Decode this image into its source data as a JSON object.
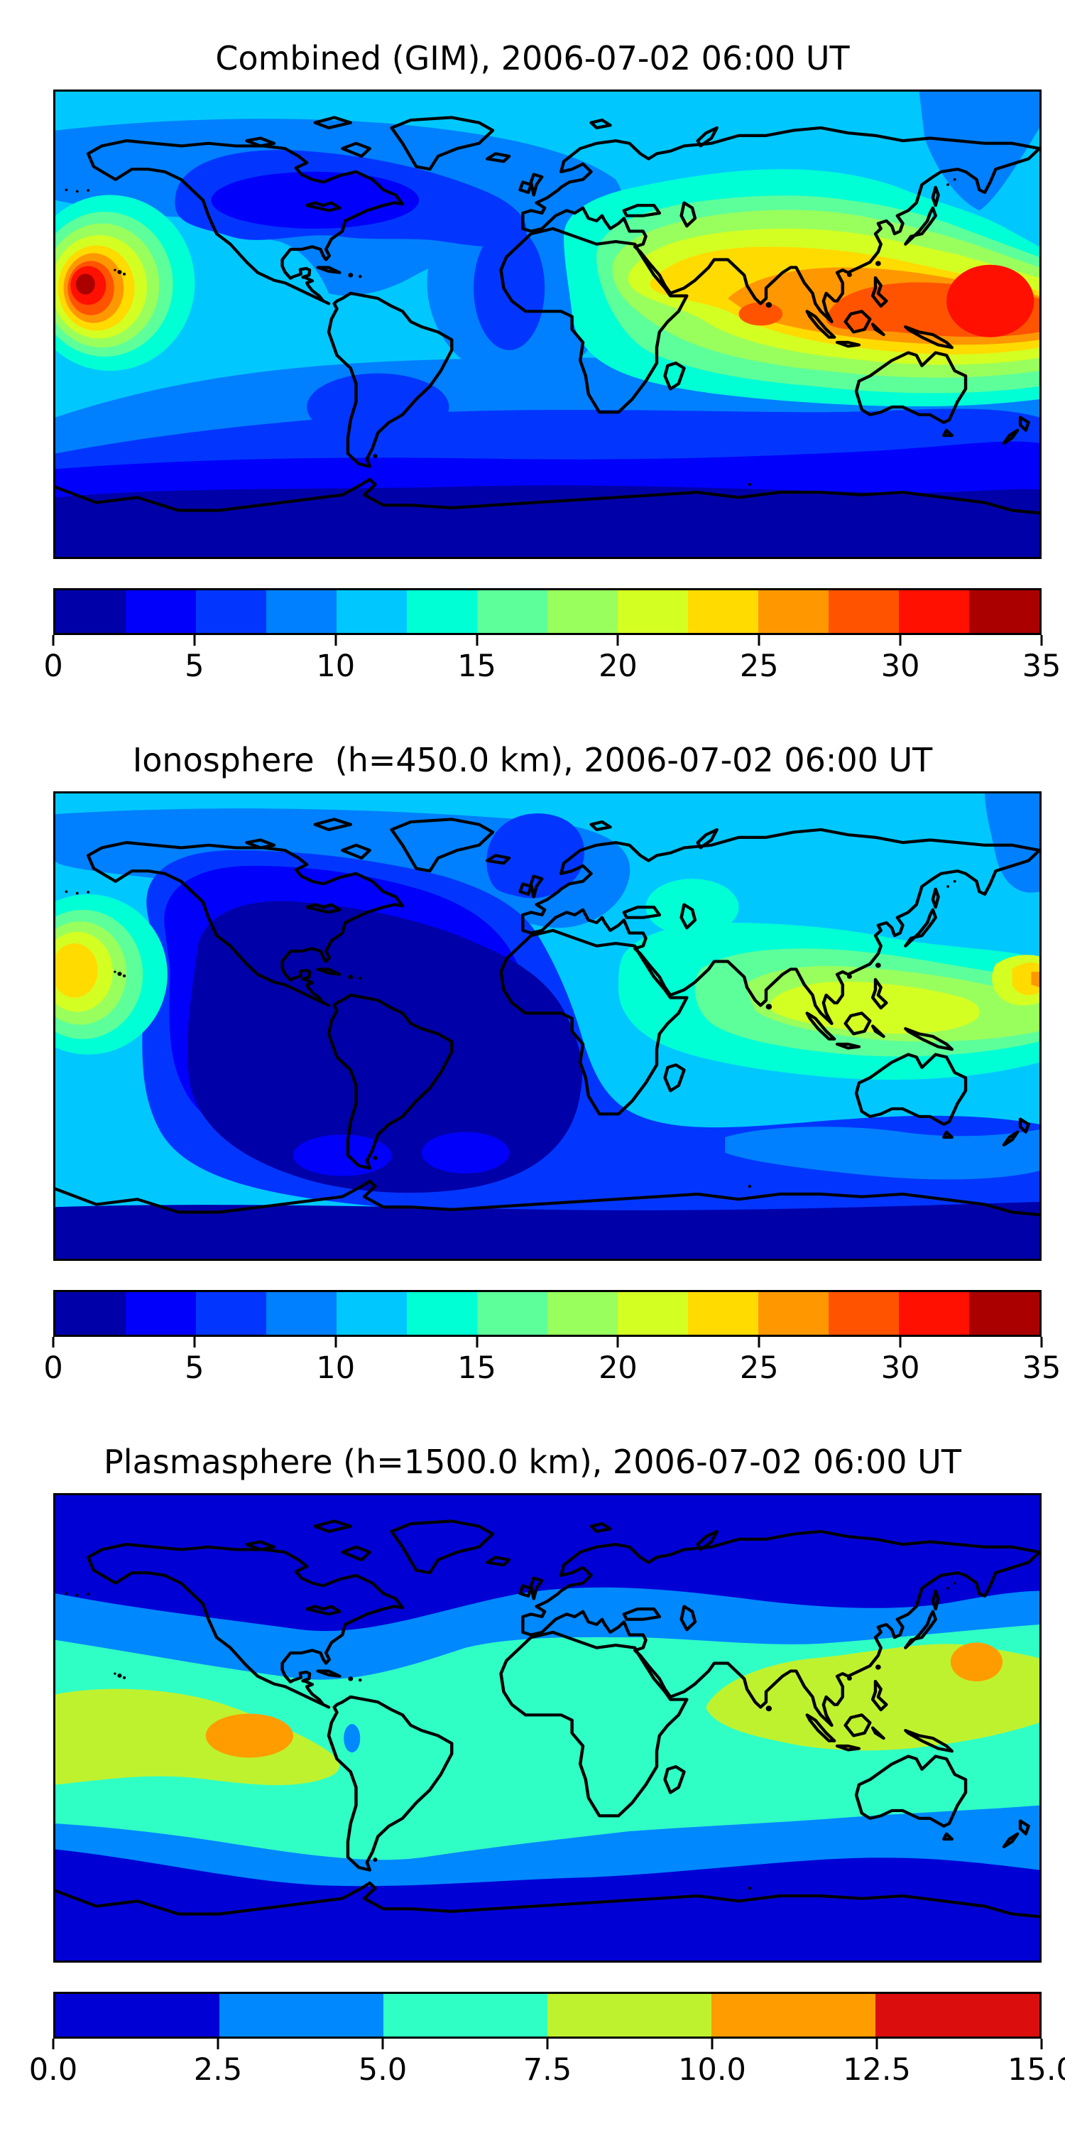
{
  "page": {
    "background": "#ffffff",
    "figure_count": 3
  },
  "figures": [
    {
      "id": "combined-gim",
      "title": "Combined (GIM), 2006-07-02 06:00 UT",
      "colorbar": {
        "min": 0,
        "max": 35,
        "tick_labels": [
          "0",
          "5",
          "10",
          "15",
          "20",
          "25",
          "30",
          "35"
        ],
        "segment_colors": [
          "#0000A9",
          "#0000FB",
          "#0236FF",
          "#0080FF",
          "#00C8FF",
          "#00FFD5",
          "#5DFF9A",
          "#99FF5D",
          "#D4FF23",
          "#FFDB00",
          "#FF9700",
          "#FF5300",
          "#FF1000",
          "#AA0000"
        ]
      }
    },
    {
      "id": "ionosphere",
      "title": "Ionosphere  (h=450.0 km), 2006-07-02 06:00 UT",
      "colorbar": {
        "min": 0,
        "max": 35,
        "tick_labels": [
          "0",
          "5",
          "10",
          "15",
          "20",
          "25",
          "30",
          "35"
        ],
        "segment_colors": [
          "#0000A9",
          "#0000FB",
          "#0236FF",
          "#0080FF",
          "#00C8FF",
          "#00FFD5",
          "#5DFF9A",
          "#99FF5D",
          "#D4FF23",
          "#FFDB00",
          "#FF9700",
          "#FF5300",
          "#FF1000",
          "#AA0000"
        ]
      }
    },
    {
      "id": "plasmasphere",
      "title": "Plasmasphere (h=1500.0 km), 2006-07-02 06:00 UT",
      "colorbar": {
        "min": 0,
        "max": 15,
        "tick_labels": [
          "0.0",
          "2.5",
          "5.0",
          "7.5",
          "10.0",
          "12.5",
          "15.0"
        ],
        "segment_colors": [
          "#0000D5",
          "#0088FF",
          "#30FFC5",
          "#BFF22E",
          "#FF9C00",
          "#DC0D0D"
        ]
      }
    }
  ],
  "chart_data": [
    {
      "type": "heatmap",
      "subtype": "filled_contour_world_map",
      "title": "Combined (GIM), 2006-07-02 06:00 UT",
      "timestamp_label": "2006-07-02 06:00 UT",
      "projection": "equirectangular",
      "lon_range": [
        -180,
        180
      ],
      "lat_range": [
        -90,
        90
      ],
      "value_range": [
        0,
        35
      ],
      "contour_interval": 2.5,
      "colormap": "jet",
      "colorbar_tick_labels": [
        "0",
        "5",
        "10",
        "15",
        "20",
        "25",
        "30",
        "35"
      ],
      "legend_position": "bottom",
      "grid": false,
      "coastlines": true,
      "features": [
        {
          "label": "primary maximum, central Pacific near Hawaii",
          "lon_deg": -155,
          "lat_deg": 17,
          "approx_value": 34
        },
        {
          "label": "secondary maximum, western Pacific",
          "lon_deg": 162,
          "lat_deg": 15,
          "approx_value": 33
        },
        {
          "label": "broad enhancement over India and Southeast Asia",
          "lon_deg": 100,
          "lat_deg": 12,
          "approx_value": 29
        },
        {
          "label": "enhancement over Arabia / Red Sea",
          "lon_deg": 45,
          "lat_deg": 15,
          "approx_value": 24
        },
        {
          "label": "nightside minimum over eastern North America / North Atlantic",
          "lon_deg": -70,
          "lat_deg": 45,
          "approx_value": 3
        },
        {
          "label": "low band at southern high latitudes",
          "lon_deg": 0,
          "lat_deg": -65,
          "approx_value": 1.5
        }
      ]
    },
    {
      "type": "heatmap",
      "subtype": "filled_contour_world_map",
      "title": "Ionosphere  (h=450.0 km), 2006-07-02 06:00 UT",
      "timestamp_label": "2006-07-02 06:00 UT",
      "projection": "equirectangular",
      "lon_range": [
        -180,
        180
      ],
      "lat_range": [
        -90,
        90
      ],
      "value_range": [
        0,
        35
      ],
      "contour_interval": 2.5,
      "colormap": "jet",
      "colorbar_tick_labels": [
        "0",
        "5",
        "10",
        "15",
        "20",
        "25",
        "30",
        "35"
      ],
      "legend_position": "bottom",
      "grid": false,
      "coastlines": true,
      "features": [
        {
          "label": "maximum, central Pacific near Hawaii",
          "lon_deg": -160,
          "lat_deg": 20,
          "approx_value": 23
        },
        {
          "label": "enhancement at far western Pacific edge",
          "lon_deg": 172,
          "lat_deg": 18,
          "approx_value": 25
        },
        {
          "label": "yellow-green enhancement over Indonesia / Bay of Bengal",
          "lon_deg": 105,
          "lat_deg": -3,
          "approx_value": 21
        },
        {
          "label": "teal patch near Caspian Sea",
          "lon_deg": 52,
          "lat_deg": 45,
          "approx_value": 13
        },
        {
          "label": "deep minimum over Central / South America and tropical Atlantic",
          "lon_deg": -70,
          "lat_deg": 5,
          "approx_value": 1.5
        },
        {
          "label": "light-blue arctic band",
          "lon_deg": 0,
          "lat_deg": 80,
          "approx_value": 11
        }
      ]
    },
    {
      "type": "heatmap",
      "subtype": "filled_contour_world_map",
      "title": "Plasmasphere (h=1500.0 km), 2006-07-02 06:00 UT",
      "timestamp_label": "2006-07-02 06:00 UT",
      "projection": "equirectangular",
      "lon_range": [
        -180,
        180
      ],
      "lat_range": [
        -90,
        90
      ],
      "value_range": [
        0,
        15
      ],
      "contour_interval": 2.5,
      "colormap": "jet",
      "colorbar_tick_labels": [
        "0.0",
        "2.5",
        "5.0",
        "7.5",
        "10.0",
        "12.5",
        "15.0"
      ],
      "legend_position": "bottom",
      "grid": false,
      "coastlines": true,
      "features": [
        {
          "label": "equatorial yellow-green band across Pacific",
          "lon_deg": -130,
          "lat_deg": -5,
          "approx_value": 9
        },
        {
          "label": "equatorial yellow-green band over India / Southeast Asia / west Pacific",
          "lon_deg": 110,
          "lat_deg": 5,
          "approx_value": 9
        },
        {
          "label": "orange core, eastern Pacific",
          "lon_deg": -110,
          "lat_deg": -3,
          "approx_value": 11
        },
        {
          "label": "orange core, western Pacific",
          "lon_deg": 157,
          "lat_deg": 26,
          "approx_value": 11
        },
        {
          "label": "small low pocket over Peru / western Amazon",
          "lon_deg": -72,
          "lat_deg": -4,
          "approx_value": 4
        },
        {
          "label": "polar minima north and south",
          "lon_deg": 0,
          "lat_deg": 75,
          "approx_value": 1
        }
      ]
    }
  ]
}
